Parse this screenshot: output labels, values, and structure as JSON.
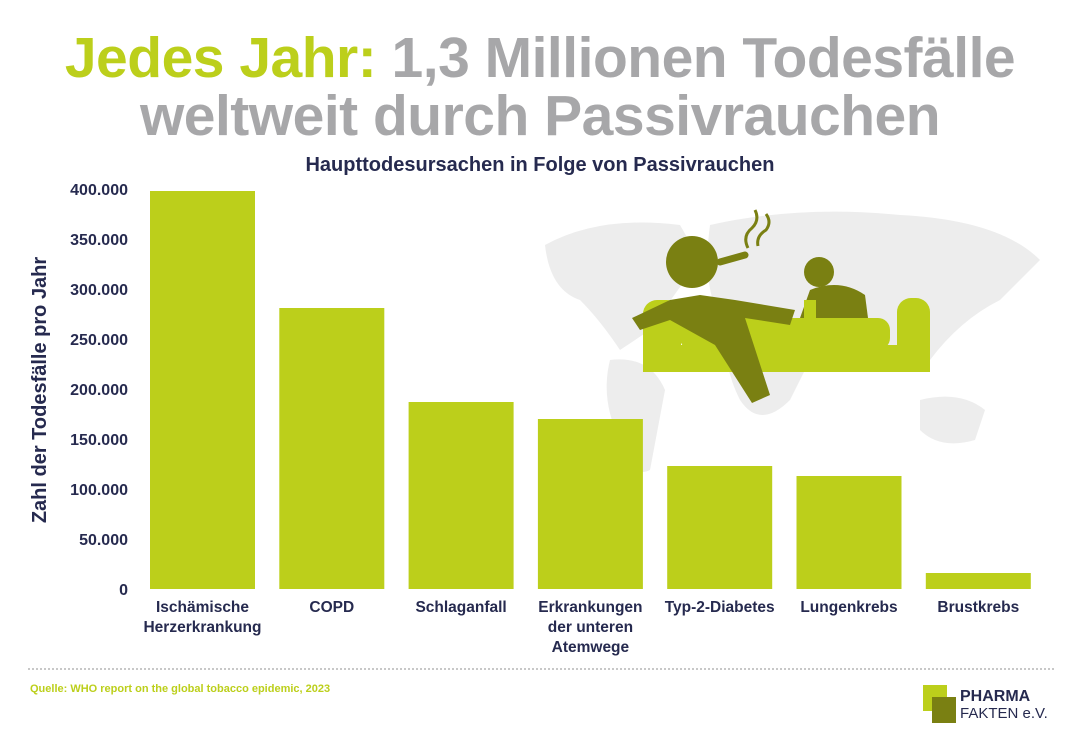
{
  "header": {
    "title_highlight": "Jedes Jahr:",
    "title_rest": " 1,3 Millionen Todesfälle",
    "title_line2": "weltweit durch Passivrauchen"
  },
  "chart_data": {
    "type": "bar",
    "title": "Haupttodesursachen in Folge von Passivrauchen",
    "ylabel": "Zahl der Todesfälle pro Jahr",
    "xlabel": "",
    "ylim": [
      0,
      400000
    ],
    "yticks": [
      "0",
      "50.000",
      "100.000",
      "150.000",
      "200.000",
      "250.000",
      "300.000",
      "350.000",
      "400.000"
    ],
    "categories": [
      [
        "Ischämische",
        "Herzerkrankung"
      ],
      [
        "COPD"
      ],
      [
        "Schlaganfall"
      ],
      [
        "Erkrankungen",
        "der unteren",
        "Atemwege"
      ],
      [
        "Typ-2-Diabetes"
      ],
      [
        "Lungenkrebs"
      ],
      [
        "Brustkrebs"
      ]
    ],
    "values": [
      398000,
      281000,
      187000,
      170000,
      123000,
      113000,
      16000
    ],
    "bar_color": "#bccf1b",
    "grid": false,
    "legend": "none"
  },
  "illustration": {
    "icons": [
      "world-map",
      "person-smoking-on-couch",
      "baby-icon",
      "cigarette-icon"
    ],
    "color": "#7a8012",
    "map_color": "#ededed"
  },
  "footer": {
    "source": "Quelle: WHO report on the global tobacco epidemic, 2023",
    "logo_line1": "PHARMA",
    "logo_line2": "FAKTEN e.V."
  }
}
